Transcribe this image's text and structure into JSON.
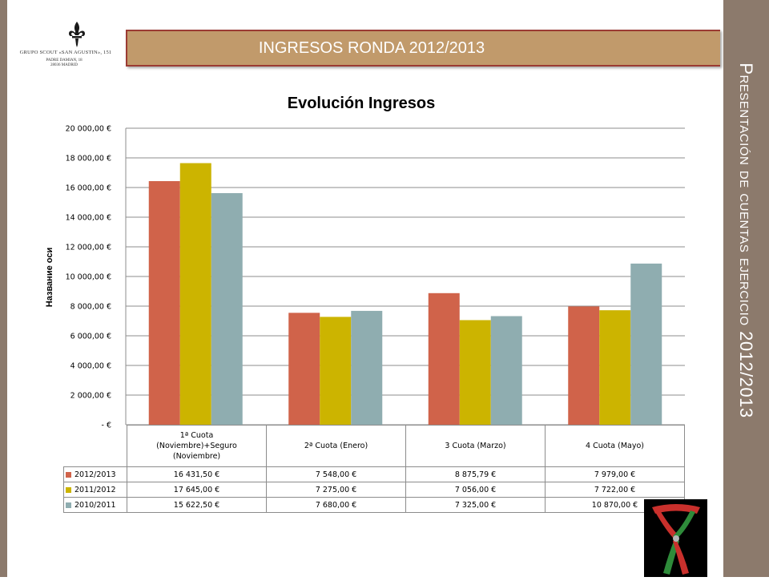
{
  "side_title": "Presentación de cuentas ejercicio 2012/2013",
  "banner": {
    "title": "INGRESOS RONDA 2012/2013"
  },
  "logo": {
    "line1": "GRUPO SCOUT «SAN AGUSTIN», 151",
    "line2": "PADRE DAMIAN, 18",
    "line3": "28036 MADRID"
  },
  "colors": {
    "series_2012": "#d0634a",
    "series_2011": "#ccb400",
    "series_2010": "#8fadb0",
    "sidebar": "#8c7a6c",
    "banner": "#c19a6b"
  },
  "chart_data": {
    "type": "bar",
    "title": "Evolución Ingresos",
    "ylabel": "Название оси",
    "xlabel": "",
    "categories": [
      "1ª Cuota (Noviembre)+Seguro (Noviembre)",
      "2ª Cuota (Enero)",
      "3 Cuota (Marzo)",
      "4 Cuota (Mayo)"
    ],
    "category_lines": [
      [
        "1ª Cuota",
        "(Noviembre)+Seguro",
        "(Noviembre)"
      ],
      [
        "2ª Cuota (Enero)"
      ],
      [
        "3 Cuota (Marzo)"
      ],
      [
        "4 Cuota (Mayo)"
      ]
    ],
    "ylim": [
      0,
      20000
    ],
    "yticks": [
      0,
      2000,
      4000,
      6000,
      8000,
      10000,
      12000,
      14000,
      16000,
      18000,
      20000
    ],
    "ytick_labels": [
      "-   €",
      "2 000,00 €",
      "4 000,00 €",
      "6 000,00 €",
      "8 000,00 €",
      "10 000,00 €",
      "12 000,00 €",
      "14 000,00 €",
      "16 000,00 €",
      "18 000,00 €",
      "20 000,00 €"
    ],
    "grid": true,
    "legend": "data table below chart",
    "series": [
      {
        "name": "2012/2013",
        "color": "#d0634a",
        "values": [
          16431.5,
          7548.0,
          8875.79,
          7979.0
        ],
        "labels": [
          "16 431,50 €",
          "7 548,00 €",
          "8 875,79 €",
          "7 979,00 €"
        ]
      },
      {
        "name": "2011/2012",
        "color": "#ccb400",
        "values": [
          17645.0,
          7275.0,
          7056.0,
          7722.0
        ],
        "labels": [
          "17 645,00 €",
          "7 275,00 €",
          "7 056,00 €",
          "7 722,00 €"
        ]
      },
      {
        "name": "2010/2011",
        "color": "#8fadb0",
        "values": [
          15622.5,
          7680.0,
          7325.0,
          10870.0
        ],
        "labels": [
          "15 622,50 €",
          "7 680,00 €",
          "7 325,00 €",
          "10 870,00 €"
        ]
      }
    ]
  }
}
